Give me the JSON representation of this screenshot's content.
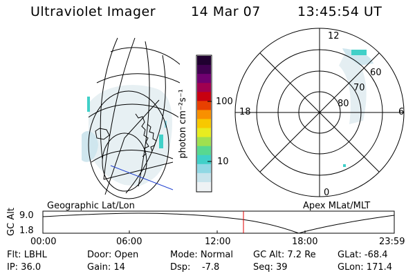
{
  "header": {
    "instrument": "Ultraviolet Imager",
    "date": "14 Mar 07",
    "time": "13:45:54 UT"
  },
  "colorbar": {
    "label": "photon cm⁻²s⁻¹",
    "tick_100": "100",
    "tick_10": "10",
    "colors": [
      "#eef2f4",
      "#c8e4ec",
      "#90d8e4",
      "#40d0c8",
      "#58d890",
      "#a0e050",
      "#e8ec20",
      "#f8c800",
      "#f89000",
      "#e84000",
      "#c80010",
      "#a00050",
      "#700070",
      "#400050",
      "#200030"
    ]
  },
  "polar": {
    "labels": {
      "top": "12",
      "left": "18",
      "right": "6",
      "bottom": "0",
      "r60": "60",
      "r70": "70",
      "r80": "80"
    }
  },
  "timeline": {
    "left_title": "Geographic Lat/Lon",
    "right_title": "Apex MLat/MLT",
    "y_label": "GC Alt",
    "y_top": "9.0",
    "y_bottom": "1.8",
    "ticks": [
      "00:00",
      "06:00",
      "12:00",
      "18:00",
      "23:59"
    ],
    "marker_color": "#e00000"
  },
  "footer": {
    "flt": "Flt: LBHL",
    "ip": "IP: 36.0",
    "door": "Door: Open",
    "gain": "Gain: 14",
    "mode": "Mode: Normal",
    "dsp": "Dsp:    -7.8",
    "gcalt": "GC Alt: 7.2 Re",
    "seq": "Seq: 39",
    "glat": "GLat: -68.4",
    "glon": "GLon: 171.4"
  }
}
